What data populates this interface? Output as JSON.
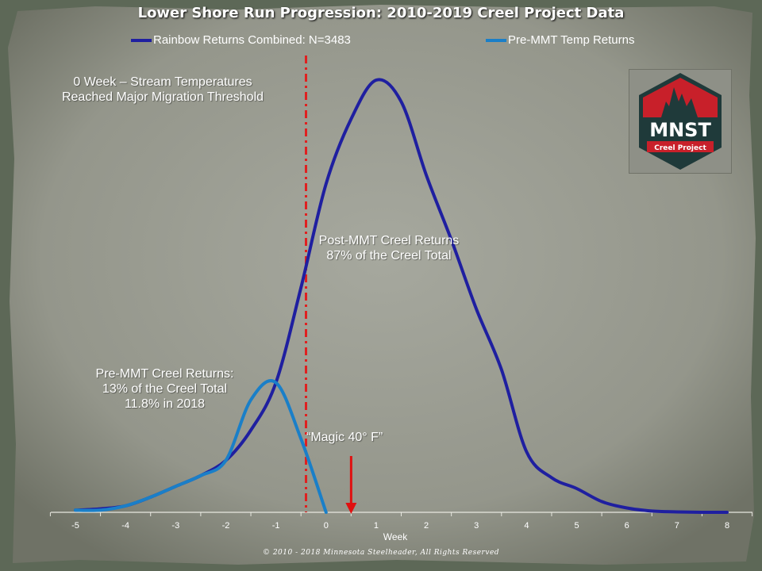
{
  "colors": {
    "series_combined": "#1f1fa0",
    "series_pre": "#1a7fc8",
    "threshold_line": "#e02020",
    "arrow": "#e01010",
    "logo_red": "#c8202a",
    "logo_dark": "#1f3a3a"
  },
  "chart_data": {
    "type": "line",
    "title": "Lower Shore Run Progression: 2010-2019 Creel Project Data",
    "xlabel": "Week",
    "ylabel": "",
    "xlim": [
      -5,
      8
    ],
    "x_ticks": [
      "-5",
      "-4",
      "-3",
      "-2",
      "-1",
      "0",
      "1",
      "2",
      "3",
      "4",
      "5",
      "6",
      "7",
      "8"
    ],
    "grid": false,
    "legend_position": "top",
    "series": [
      {
        "name": "Rainbow Returns Combined: N=3483",
        "x": [
          -5,
          -4.5,
          -4,
          -3.5,
          -3,
          -2.5,
          -2,
          -1.5,
          -1,
          -0.5,
          0,
          0.5,
          1,
          1.5,
          2,
          2.5,
          3,
          3.5,
          4,
          4.5,
          5,
          5.5,
          6,
          6.5,
          7,
          7.5,
          8
        ],
        "y": [
          0.5,
          0.8,
          1.5,
          3.5,
          6,
          8.5,
          12,
          19,
          30,
          52,
          76,
          91,
          100,
          95,
          78,
          63,
          47,
          33,
          14,
          8,
          5.5,
          2.5,
          1,
          0.3,
          0.1,
          0,
          0
        ]
      },
      {
        "name": "Pre-MMT Temp Returns",
        "x": [
          -5,
          -4.5,
          -4,
          -3.5,
          -3,
          -2.5,
          -2,
          -1.5,
          -1,
          -0.5,
          0
        ],
        "y": [
          0.5,
          0.5,
          1.5,
          3.5,
          6,
          8.5,
          12,
          26,
          30,
          17,
          0
        ]
      }
    ],
    "vline_x": -0.4,
    "arrow_x": 0.5
  },
  "annotations": {
    "threshold": "0 Week – Stream Temperatures\nReached Major Migration Threshold",
    "post": "Post-MMT Creel Returns\n87% of the Creel Total",
    "pre": "Pre-MMT Creel Returns:\n13% of the Creel Total\n11.8% in 2018",
    "magic": "“Magic 40° F”"
  },
  "logo": {
    "main": "MNST",
    "sub": "Creel Project"
  },
  "footer": {
    "copyright": "© 2010 - 2018 Minnesota Steelheader, All Rights Reserved"
  }
}
